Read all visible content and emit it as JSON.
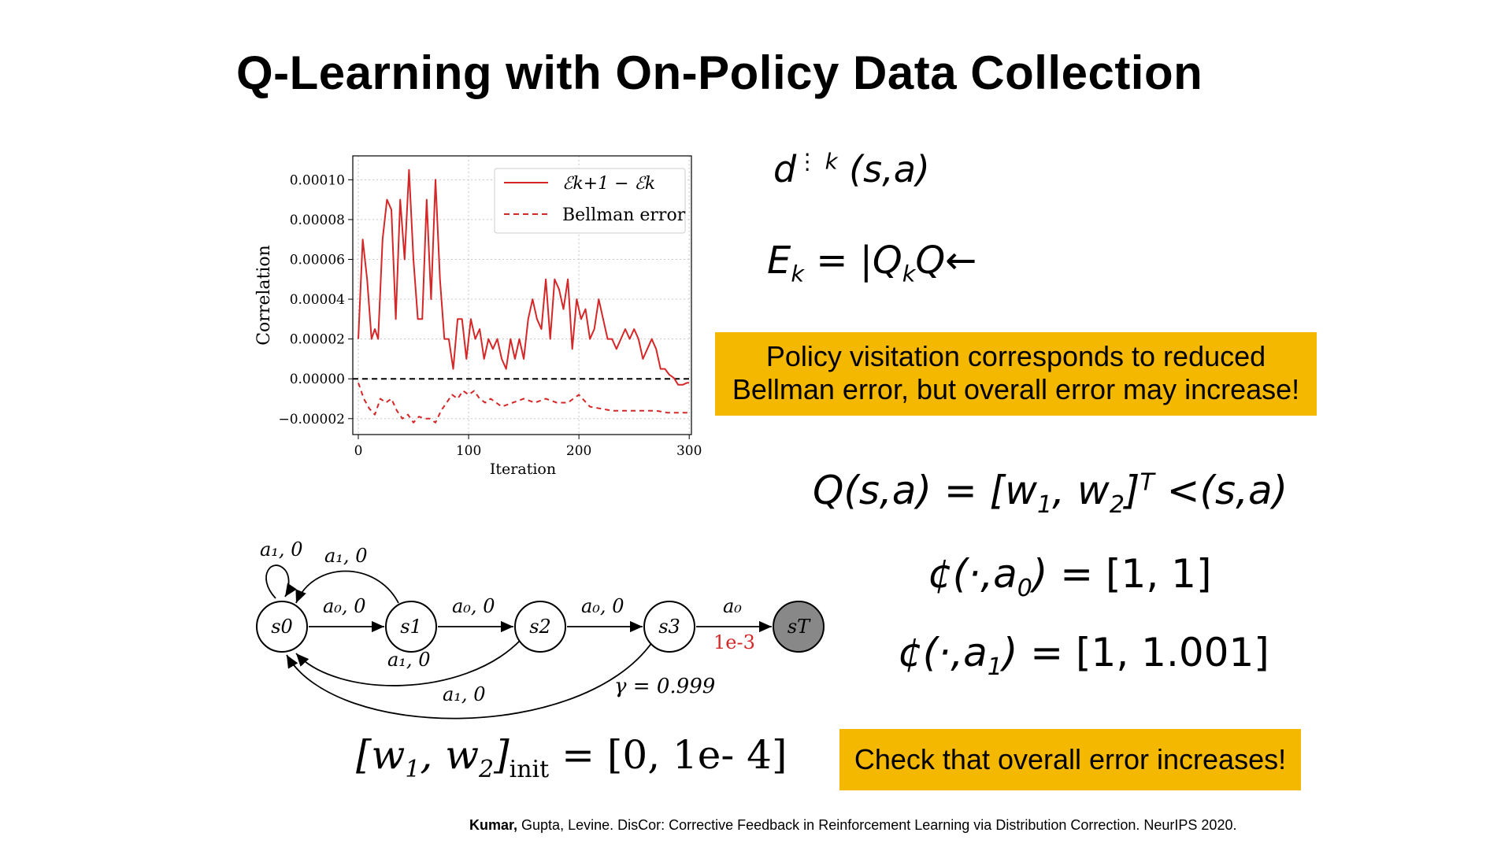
{
  "slide": {
    "title": "Q-Learning with On-Policy Data Collection",
    "citation_author": "Kumar,",
    "citation_rest": " Gupta, Levine. DisCor: Corrective Feedback in Reinforcement Learning via Distribution Correction. NeurIPS 2020."
  },
  "equations": {
    "d_k": {
      "base": "d",
      "sup": "⋮ k",
      "args": " (s,a)"
    },
    "e_k": {
      "lhs": "E",
      "lhs_sub": "k",
      "eq": " = ",
      "rhs_a": "|Q",
      "rhs_sub": "k",
      "rhs_b": "Q←"
    },
    "q_def": {
      "lhs": "Q(s,a)",
      "eq": " = ",
      "w": "[w",
      "w1": "1",
      "comma": ", w",
      "w2": "2",
      "close": "]",
      "sup": "T",
      "rest": " <(s,a)"
    },
    "phi0": {
      "lhs": "¢(·,a",
      "sub": "0",
      "close": ")",
      "eq": " = ",
      "rhs": "[1, 1]"
    },
    "phi1": {
      "lhs": "¢(·,a",
      "sub": "1",
      "close": ")",
      "eq": " = ",
      "rhs": "[1, 1.001]"
    },
    "w_init": {
      "open": "[w",
      "s1": "1",
      "mid": ", w",
      "s2": "2",
      "close": "]",
      "sub": "init",
      "eq": " = ",
      "rhs": "[0, 1e- 4]"
    }
  },
  "callouts": {
    "first_line1": "Policy visitation corresponds to reduced",
    "first_line2": "Bellman error, but overall error may increase!",
    "second": "Check that overall error increases!"
  },
  "colors": {
    "accent": "#f5b800",
    "series": "#d62728"
  },
  "chart_data": {
    "type": "line",
    "xlabel": "Iteration",
    "ylabel": "Correlation",
    "xlim": [
      -5,
      302
    ],
    "ylim": [
      -2.8e-05,
      0.000112
    ],
    "xticks": [
      0,
      100,
      200,
      300
    ],
    "xtick_labels": [
      "0",
      "100",
      "200",
      "300"
    ],
    "yticks": [
      0.0001,
      8e-05,
      6e-05,
      4e-05,
      2e-05,
      0,
      -2e-05
    ],
    "ytick_labels": [
      "0.00010",
      "0.00008",
      "0.00006",
      "0.00004",
      "0.00002",
      "0.00000",
      "−0.00002"
    ],
    "grid": true,
    "legend_position": "top-right",
    "legend": [
      "ℰk+1 − ℰk",
      "Bellman error"
    ],
    "hline": 0,
    "series": [
      {
        "name": "ℰk+1 − ℰk",
        "style": "solid",
        "x": [
          0,
          4,
          8,
          12,
          15,
          18,
          22,
          26,
          30,
          34,
          38,
          42,
          46,
          50,
          54,
          58,
          62,
          66,
          70,
          74,
          78,
          82,
          86,
          90,
          94,
          98,
          102,
          106,
          110,
          114,
          118,
          122,
          126,
          130,
          134,
          138,
          142,
          146,
          150,
          154,
          158,
          162,
          166,
          170,
          174,
          178,
          182,
          186,
          190,
          194,
          198,
          202,
          206,
          210,
          214,
          218,
          222,
          226,
          230,
          234,
          238,
          242,
          246,
          250,
          254,
          258,
          262,
          266,
          270,
          274,
          278,
          282,
          286,
          290,
          294,
          298,
          300
        ],
        "y": [
          2e-05,
          7e-05,
          5e-05,
          2e-05,
          2.5e-05,
          2e-05,
          7e-05,
          9e-05,
          8.5e-05,
          3e-05,
          9e-05,
          6e-05,
          0.000105,
          6e-05,
          3e-05,
          3e-05,
          9e-05,
          4e-05,
          0.0001,
          5e-05,
          2e-05,
          2e-05,
          5e-06,
          3e-05,
          3e-05,
          1e-05,
          3e-05,
          2e-05,
          2.5e-05,
          1e-05,
          2e-05,
          1.5e-05,
          2e-05,
          1e-05,
          5e-06,
          2e-05,
          1e-05,
          2e-05,
          1e-05,
          3e-05,
          4e-05,
          3e-05,
          2.5e-05,
          5e-05,
          2e-05,
          5e-05,
          4.5e-05,
          3.5e-05,
          5e-05,
          1.5e-05,
          4e-05,
          3e-05,
          3.5e-05,
          2e-05,
          2.5e-05,
          4e-05,
          3e-05,
          2e-05,
          2e-05,
          1.5e-05,
          2e-05,
          2.5e-05,
          2e-05,
          2.5e-05,
          2e-05,
          1e-05,
          1.5e-05,
          2e-05,
          1.5e-05,
          5e-06,
          5e-06,
          2e-06,
          5e-07,
          -3e-06,
          -3e-06,
          -2e-06,
          -2e-06
        ]
      },
      {
        "name": "Bellman error",
        "style": "dashed",
        "x": [
          0,
          5,
          10,
          15,
          20,
          25,
          30,
          35,
          40,
          45,
          50,
          55,
          60,
          65,
          70,
          75,
          80,
          85,
          90,
          95,
          100,
          105,
          110,
          115,
          120,
          130,
          140,
          150,
          160,
          170,
          180,
          190,
          200,
          210,
          220,
          230,
          240,
          250,
          260,
          270,
          280,
          290,
          300
        ],
        "y": [
          -2e-06,
          -1e-05,
          -1.5e-05,
          -1.8e-05,
          -1e-05,
          -1.2e-05,
          -1e-05,
          -1.6e-05,
          -2e-05,
          -1.8e-05,
          -2.2e-05,
          -1.9e-05,
          -2e-05,
          -2e-05,
          -2.2e-05,
          -1.6e-05,
          -1.2e-05,
          -8e-06,
          -1e-05,
          -6e-06,
          -8e-06,
          -6e-06,
          -1e-05,
          -1.2e-05,
          -1e-05,
          -1.4e-05,
          -1.2e-05,
          -1e-05,
          -1.2e-05,
          -1e-05,
          -1.2e-05,
          -1.2e-05,
          -8e-06,
          -1.4e-05,
          -1.5e-05,
          -1.6e-05,
          -1.6e-05,
          -1.6e-05,
          -1.6e-05,
          -1.6e-05,
          -1.7e-05,
          -1.7e-05,
          -1.7e-05
        ]
      }
    ]
  },
  "diagram": {
    "nodes": [
      "s0",
      "s1",
      "s2",
      "s3",
      "sT"
    ],
    "forward_edges": [
      "a₀, 0",
      "a₀, 0",
      "a₀, 0",
      "a₀"
    ],
    "self_loop": "a₁, 0",
    "back_edge_s1": "a₁, 0",
    "back_edge_s2": "a₁, 0",
    "back_edge_s3": "a₁, 0",
    "terminal_reward": "1e-3",
    "gamma": "γ = 0.999"
  }
}
